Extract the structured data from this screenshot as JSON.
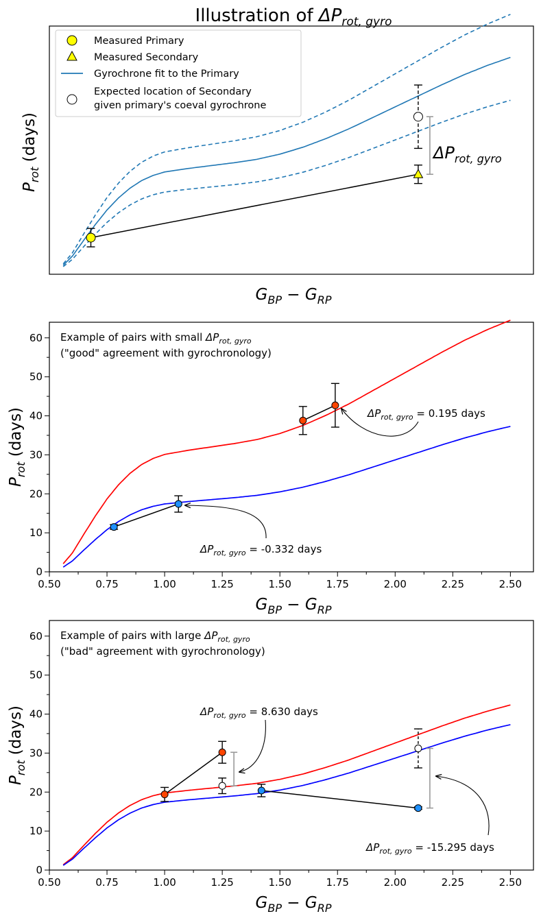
{
  "figure": {
    "title_main": "Illustration of ",
    "title_sym": "ΔP",
    "title_sub": "rot, gyro"
  },
  "labels": {
    "y_sym": "P",
    "y_sub": "rot",
    "y_unit": " (days)",
    "x_g": "G",
    "x_bp": "BP",
    "x_minus": " − ",
    "x_rp": "RP"
  },
  "delta": {
    "sym": "ΔP",
    "sub": "rot, gyro",
    "eq_prefix": " = "
  },
  "chart_data": [
    {
      "type": "line",
      "title": "Illustration of ΔProt,gyro",
      "xlabel": "G_BP − G_RP",
      "ylabel": "P_rot (days)",
      "axes_ticks": false,
      "legend": {
        "placement": "top-left",
        "items": [
          {
            "label": "Measured Primary",
            "marker": "circle",
            "color": "#ffff00"
          },
          {
            "label": "Measured Secondary",
            "marker": "triangle",
            "color": "#ffff00"
          },
          {
            "label": "Gyrochrone fit to the Primary",
            "marker": "line",
            "color": "#1f77b4"
          },
          {
            "label": "Expected location of Secondary",
            "label2": "given primary's coeval gyrochrone",
            "marker": "circle",
            "color": "#ffffff"
          }
        ]
      },
      "gyrochrone_scale": 1.0,
      "envelope_scale": [
        1.2,
        0.8
      ],
      "primary": {
        "x": 0.68,
        "y": 6.0,
        "err": 1.6
      },
      "secondary": {
        "x": 2.1,
        "y": 17.0,
        "err": 1.6
      },
      "expected": {
        "x": 2.1,
        "y": 27.0
      },
      "delta_label": "ΔProt,gyro"
    },
    {
      "type": "line",
      "xlabel": "G_BP − G_RP",
      "ylabel": "P_rot (days)",
      "xlim": [
        0.5,
        2.6
      ],
      "ylim": [
        0,
        64
      ],
      "xticks": [
        "0.50",
        "0.75",
        "1.00",
        "1.25",
        "1.50",
        "1.75",
        "2.00",
        "2.25",
        "2.50"
      ],
      "yticks": [
        "0",
        "10",
        "20",
        "30",
        "40",
        "50",
        "60"
      ],
      "annotation_title": "Example of pairs with small ",
      "annotation_line2": "(\"good\" agreement with gyrochronology)",
      "curves": [
        {
          "name": "red gyrochrone",
          "scale": 1.73,
          "color": "#ff0000"
        },
        {
          "name": "blue gyrochrone",
          "scale": 1.0,
          "color": "#0000ff"
        }
      ],
      "pairs": [
        {
          "color": "#ff4500",
          "a": {
            "x": 1.6,
            "y": 38.8,
            "err": 3.6
          },
          "b": {
            "x": 1.74,
            "y": 42.7,
            "err": 5.6
          },
          "label": "0.195 days"
        },
        {
          "color": "#1e90ff",
          "a": {
            "x": 0.78,
            "y": 11.5,
            "err": 0.6
          },
          "b": {
            "x": 1.06,
            "y": 17.4,
            "err": 2.1
          },
          "label": "-0.332 days"
        }
      ]
    },
    {
      "type": "line",
      "xlabel": "G_BP − G_RP",
      "ylabel": "P_rot (days)",
      "xlim": [
        0.5,
        2.6
      ],
      "ylim": [
        0,
        64
      ],
      "xticks": [
        "0.50",
        "0.75",
        "1.00",
        "1.25",
        "1.50",
        "1.75",
        "2.00",
        "2.25",
        "2.50"
      ],
      "yticks": [
        "0",
        "10",
        "20",
        "30",
        "40",
        "50",
        "60"
      ],
      "annotation_title": "Example of pairs with large ",
      "annotation_line2": "(\"bad\" agreement with gyrochronology)",
      "curves": [
        {
          "name": "red gyrochrone",
          "scale": 1.135,
          "color": "#ff0000"
        },
        {
          "name": "blue gyrochrone",
          "scale": 1.0,
          "color": "#0000ff"
        }
      ],
      "pairs": [
        {
          "color": "#ff4500",
          "a": {
            "x": 1.0,
            "y": 19.4,
            "err": 1.8
          },
          "b": {
            "x": 1.25,
            "y": 30.2,
            "err": 2.8
          },
          "expected": {
            "x": 1.25,
            "y": 21.6,
            "err": 2.0
          },
          "label": "8.630 days"
        },
        {
          "color": "#1e90ff",
          "a": {
            "x": 1.42,
            "y": 20.4,
            "err": 1.6
          },
          "b": {
            "x": 2.1,
            "y": 15.9,
            "err": 0.3
          },
          "expected": {
            "x": 2.1,
            "y": 31.2,
            "err": 5.0
          },
          "label": "-15.295 days"
        }
      ]
    }
  ]
}
